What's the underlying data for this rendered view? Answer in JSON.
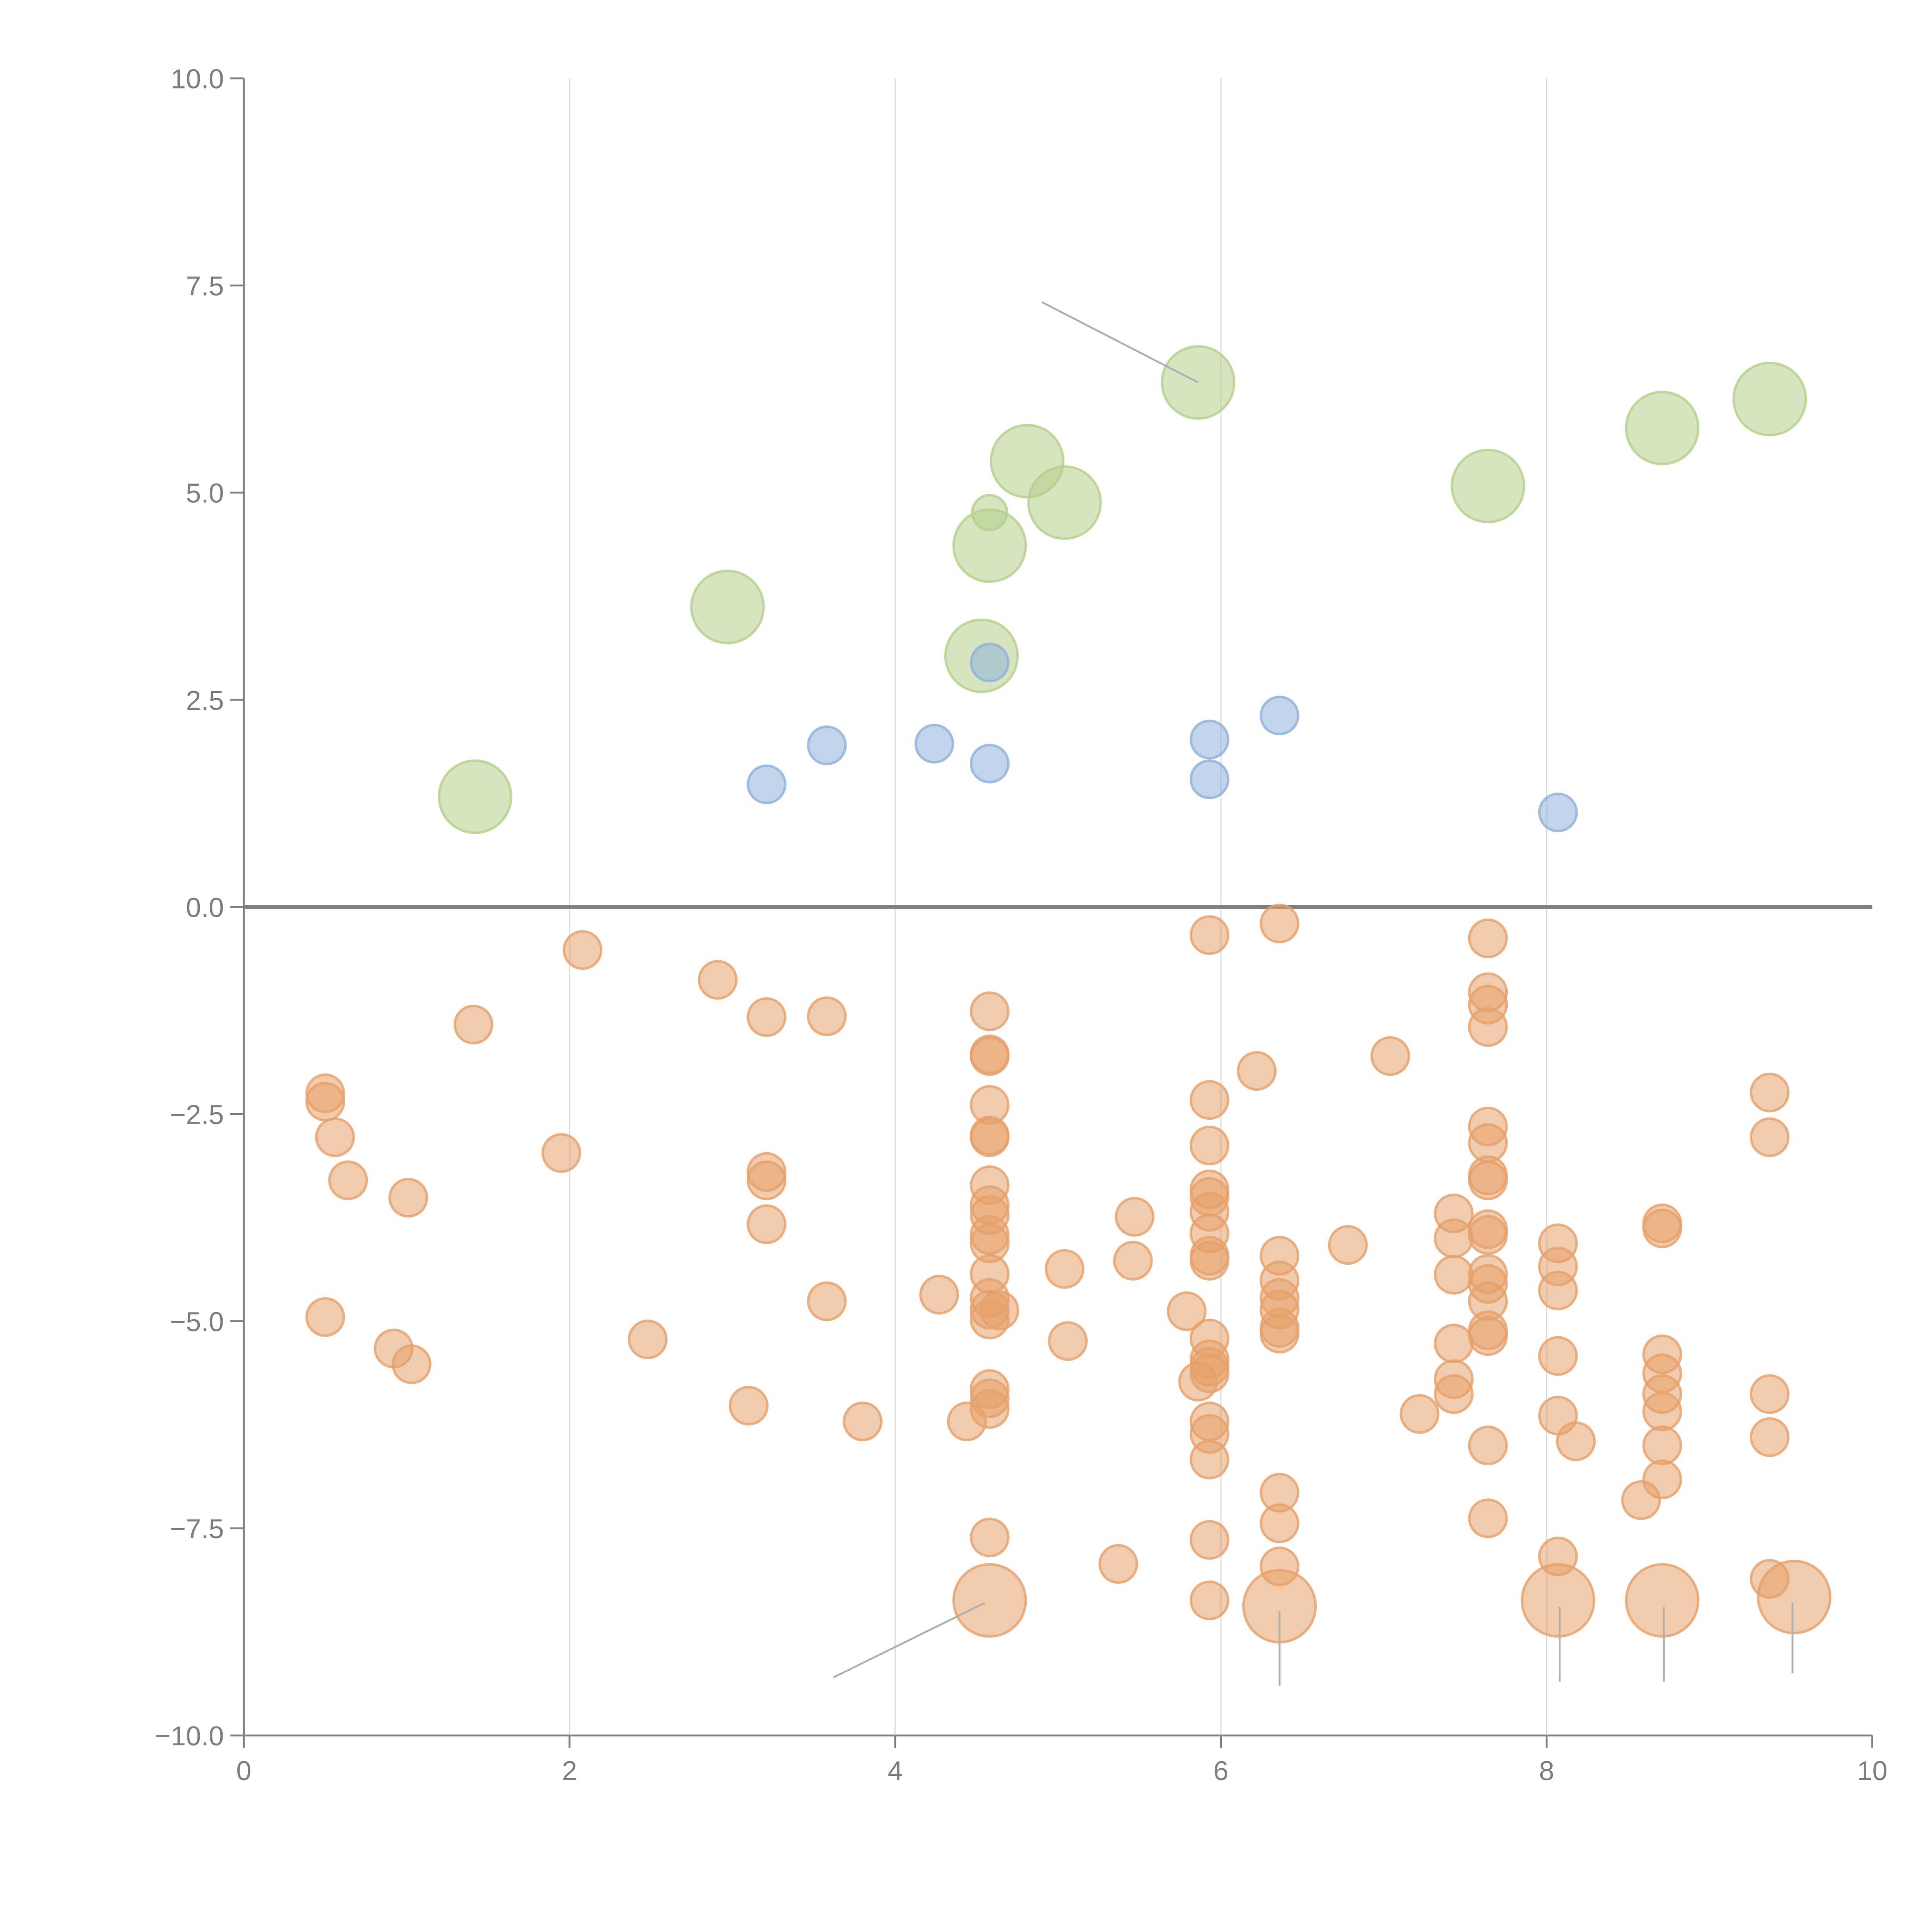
{
  "chart_data": {
    "type": "scatter",
    "title": "",
    "xlabel": "",
    "ylabel": "",
    "xlim": [
      0,
      10
    ],
    "ylim": [
      -10,
      10
    ],
    "grid": "vertical",
    "x_ticks": [
      "0",
      "2",
      "4",
      "6",
      "8",
      "10"
    ],
    "y_ticks": [
      "10.0",
      "7.5",
      "5.0",
      "2.5",
      "0.0",
      "−2.5",
      "−5.0",
      "−7.5",
      "−10.0"
    ],
    "x_tick_values": [
      0,
      2,
      4,
      6,
      8,
      10
    ],
    "y_tick_values": [
      10,
      7.5,
      5,
      2.5,
      0,
      -2.5,
      -5,
      -7.5,
      -10
    ],
    "reference_line_y": 0,
    "series": [
      {
        "name": "green",
        "color": "#b5d08a",
        "points": [
          {
            "x": 1.42,
            "y": 1.33,
            "size": "large"
          },
          {
            "x": 2.97,
            "y": 3.62,
            "size": "large"
          },
          {
            "x": 4.53,
            "y": 3.03,
            "size": "large"
          },
          {
            "x": 4.58,
            "y": 4.36,
            "size": "large"
          },
          {
            "x": 4.58,
            "y": 4.76,
            "size": "small"
          },
          {
            "x": 4.81,
            "y": 5.38,
            "size": "large"
          },
          {
            "x": 5.04,
            "y": 4.88,
            "size": "large"
          },
          {
            "x": 5.86,
            "y": 6.33,
            "size": "large"
          },
          {
            "x": 7.64,
            "y": 5.08,
            "size": "large"
          },
          {
            "x": 8.71,
            "y": 5.78,
            "size": "large"
          },
          {
            "x": 9.37,
            "y": 6.13,
            "size": "large"
          }
        ]
      },
      {
        "name": "blue",
        "color": "#8fb0d8",
        "points": [
          {
            "x": 3.21,
            "y": 1.48
          },
          {
            "x": 3.58,
            "y": 1.95
          },
          {
            "x": 4.24,
            "y": 1.97
          },
          {
            "x": 4.58,
            "y": 1.73
          },
          {
            "x": 4.58,
            "y": 2.95
          },
          {
            "x": 5.93,
            "y": 2.02
          },
          {
            "x": 5.93,
            "y": 1.54
          },
          {
            "x": 6.36,
            "y": 2.31
          },
          {
            "x": 8.07,
            "y": 1.14
          }
        ]
      },
      {
        "name": "orange",
        "color": "#e6a06a",
        "points": [
          {
            "x": 0.5,
            "y": -2.25
          },
          {
            "x": 0.5,
            "y": -2.35
          },
          {
            "x": 0.56,
            "y": -2.78
          },
          {
            "x": 0.64,
            "y": -3.3
          },
          {
            "x": 0.5,
            "y": -4.95
          },
          {
            "x": 0.92,
            "y": -5.33
          },
          {
            "x": 1.03,
            "y": -5.52
          },
          {
            "x": 1.01,
            "y": -3.51
          },
          {
            "x": 1.41,
            "y": -1.42
          },
          {
            "x": 1.95,
            "y": -2.97
          },
          {
            "x": 2.08,
            "y": -0.52
          },
          {
            "x": 2.48,
            "y": -5.22
          },
          {
            "x": 2.91,
            "y": -0.88
          },
          {
            "x": 3.1,
            "y": -6.02
          },
          {
            "x": 3.21,
            "y": -1.33
          },
          {
            "x": 3.21,
            "y": -3.2
          },
          {
            "x": 3.21,
            "y": -3.3
          },
          {
            "x": 3.21,
            "y": -3.83
          },
          {
            "x": 3.58,
            "y": -1.32
          },
          {
            "x": 3.58,
            "y": -4.76
          },
          {
            "x": 3.8,
            "y": -6.21
          },
          {
            "x": 4.27,
            "y": -4.68
          },
          {
            "x": 4.44,
            "y": -6.21
          },
          {
            "x": 4.58,
            "y": -1.26
          },
          {
            "x": 4.58,
            "y": -1.78
          },
          {
            "x": 4.58,
            "y": -1.8
          },
          {
            "x": 4.58,
            "y": -2.39
          },
          {
            "x": 4.58,
            "y": -2.76
          },
          {
            "x": 4.58,
            "y": -2.78
          },
          {
            "x": 4.58,
            "y": -3.36
          },
          {
            "x": 4.58,
            "y": -3.6
          },
          {
            "x": 4.58,
            "y": -3.72
          },
          {
            "x": 4.58,
            "y": -3.96
          },
          {
            "x": 4.58,
            "y": -4.06
          },
          {
            "x": 4.58,
            "y": -4.43
          },
          {
            "x": 4.58,
            "y": -4.72
          },
          {
            "x": 4.58,
            "y": -4.86
          },
          {
            "x": 4.58,
            "y": -4.98
          },
          {
            "x": 4.64,
            "y": -4.87
          },
          {
            "x": 4.58,
            "y": -5.82
          },
          {
            "x": 4.58,
            "y": -5.93
          },
          {
            "x": 4.58,
            "y": -6.06
          },
          {
            "x": 4.58,
            "y": -7.61
          },
          {
            "x": 4.58,
            "y": -8.37,
            "size": "large"
          },
          {
            "x": 5.04,
            "y": -4.37
          },
          {
            "x": 5.06,
            "y": -5.24
          },
          {
            "x": 5.37,
            "y": -7.93
          },
          {
            "x": 5.46,
            "y": -4.27
          },
          {
            "x": 5.47,
            "y": -3.74
          },
          {
            "x": 5.79,
            "y": -4.88
          },
          {
            "x": 5.86,
            "y": -5.73
          },
          {
            "x": 5.93,
            "y": -0.34
          },
          {
            "x": 5.93,
            "y": -2.33
          },
          {
            "x": 5.93,
            "y": -2.88
          },
          {
            "x": 5.93,
            "y": -3.41
          },
          {
            "x": 5.93,
            "y": -3.5
          },
          {
            "x": 5.93,
            "y": -3.68
          },
          {
            "x": 5.93,
            "y": -3.94
          },
          {
            "x": 5.93,
            "y": -4.21
          },
          {
            "x": 5.93,
            "y": -4.27
          },
          {
            "x": 5.93,
            "y": -5.21
          },
          {
            "x": 5.93,
            "y": -5.46
          },
          {
            "x": 5.93,
            "y": -5.55
          },
          {
            "x": 5.93,
            "y": -5.63
          },
          {
            "x": 5.93,
            "y": -6.21
          },
          {
            "x": 5.93,
            "y": -6.36
          },
          {
            "x": 5.93,
            "y": -6.67
          },
          {
            "x": 5.93,
            "y": -7.64
          },
          {
            "x": 5.93,
            "y": -8.37
          },
          {
            "x": 6.22,
            "y": -1.98
          },
          {
            "x": 6.36,
            "y": -0.2
          },
          {
            "x": 6.36,
            "y": -4.21
          },
          {
            "x": 6.36,
            "y": -4.51
          },
          {
            "x": 6.36,
            "y": -4.72
          },
          {
            "x": 6.36,
            "y": -4.86
          },
          {
            "x": 6.36,
            "y": -5.08
          },
          {
            "x": 6.36,
            "y": -5.15
          },
          {
            "x": 6.36,
            "y": -7.07
          },
          {
            "x": 6.36,
            "y": -7.44
          },
          {
            "x": 6.36,
            "y": -7.96
          },
          {
            "x": 6.36,
            "y": -8.44,
            "size": "large"
          },
          {
            "x": 6.78,
            "y": -4.08
          },
          {
            "x": 7.04,
            "y": -1.8
          },
          {
            "x": 7.22,
            "y": -6.12
          },
          {
            "x": 7.43,
            "y": -3.7
          },
          {
            "x": 7.43,
            "y": -4.0
          },
          {
            "x": 7.43,
            "y": -4.44
          },
          {
            "x": 7.43,
            "y": -5.27
          },
          {
            "x": 7.43,
            "y": -5.7
          },
          {
            "x": 7.43,
            "y": -5.88
          },
          {
            "x": 7.64,
            "y": -0.38
          },
          {
            "x": 7.64,
            "y": -1.03
          },
          {
            "x": 7.64,
            "y": -1.18
          },
          {
            "x": 7.64,
            "y": -1.45
          },
          {
            "x": 7.64,
            "y": -2.65
          },
          {
            "x": 7.64,
            "y": -2.85
          },
          {
            "x": 7.64,
            "y": -3.24
          },
          {
            "x": 7.64,
            "y": -3.3
          },
          {
            "x": 7.64,
            "y": -3.89
          },
          {
            "x": 7.64,
            "y": -3.96
          },
          {
            "x": 7.64,
            "y": -4.43
          },
          {
            "x": 7.64,
            "y": -4.55
          },
          {
            "x": 7.64,
            "y": -4.76
          },
          {
            "x": 7.64,
            "y": -5.11
          },
          {
            "x": 7.64,
            "y": -5.18
          },
          {
            "x": 7.64,
            "y": -6.5
          },
          {
            "x": 7.64,
            "y": -7.38
          },
          {
            "x": 8.07,
            "y": -4.06
          },
          {
            "x": 8.07,
            "y": -4.34
          },
          {
            "x": 8.07,
            "y": -4.63
          },
          {
            "x": 8.07,
            "y": -5.42
          },
          {
            "x": 8.07,
            "y": -6.14
          },
          {
            "x": 8.07,
            "y": -7.84
          },
          {
            "x": 8.07,
            "y": -8.37,
            "size": "large"
          },
          {
            "x": 8.18,
            "y": -6.45
          },
          {
            "x": 8.58,
            "y": -7.16
          },
          {
            "x": 8.71,
            "y": -3.82
          },
          {
            "x": 8.71,
            "y": -3.88
          },
          {
            "x": 8.71,
            "y": -5.4
          },
          {
            "x": 8.71,
            "y": -5.63
          },
          {
            "x": 8.71,
            "y": -5.88
          },
          {
            "x": 8.71,
            "y": -6.09
          },
          {
            "x": 8.71,
            "y": -6.5
          },
          {
            "x": 8.71,
            "y": -6.91
          },
          {
            "x": 8.71,
            "y": -8.37,
            "size": "large"
          },
          {
            "x": 9.37,
            "y": -2.24
          },
          {
            "x": 9.37,
            "y": -2.78
          },
          {
            "x": 9.37,
            "y": -5.88
          },
          {
            "x": 9.37,
            "y": -6.4
          },
          {
            "x": 9.37,
            "y": -8.11
          },
          {
            "x": 9.52,
            "y": -8.33,
            "size": "large"
          }
        ]
      }
    ],
    "annotations": [
      {
        "type": "leader-line",
        "from": {
          "x": 4.9,
          "y": 7.3
        },
        "to": {
          "x": 5.86,
          "y": 6.33
        },
        "color": "#b0b0b0"
      },
      {
        "type": "leader-line",
        "from": {
          "x": 3.62,
          "y": -9.3
        },
        "to": {
          "x": 4.55,
          "y": -8.4
        },
        "color": "#b0b0b0"
      },
      {
        "type": "leader-line",
        "from": {
          "x": 6.36,
          "y": -9.4
        },
        "to": {
          "x": 6.36,
          "y": -8.5
        },
        "color": "#b0b0b0"
      },
      {
        "type": "leader-line",
        "from": {
          "x": 8.08,
          "y": -9.35
        },
        "to": {
          "x": 8.08,
          "y": -8.45
        },
        "color": "#b0b0b0"
      },
      {
        "type": "leader-line",
        "from": {
          "x": 8.72,
          "y": -9.35
        },
        "to": {
          "x": 8.72,
          "y": -8.45
        },
        "color": "#b0b0b0"
      },
      {
        "type": "leader-line",
        "from": {
          "x": 9.51,
          "y": -9.25
        },
        "to": {
          "x": 9.51,
          "y": -8.4
        },
        "color": "#b0b0b0"
      }
    ]
  }
}
